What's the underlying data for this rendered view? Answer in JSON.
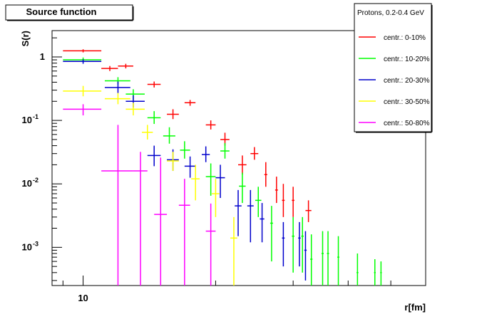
{
  "chart_data": {
    "type": "scatter",
    "title": "Source function",
    "xlabel": "r[fm]",
    "ylabel": "S(r)",
    "x_scale": "log",
    "y_scale": "log",
    "xlim": [
      8.5,
      60
    ],
    "ylim": [
      0.00025,
      2.6
    ],
    "x_ticks": [
      {
        "value": 10,
        "label": "10"
      }
    ],
    "y_ticks": [
      {
        "value": 1,
        "label": "1"
      },
      {
        "value": 0.1,
        "label": "10",
        "exp": "-1"
      },
      {
        "value": 0.01,
        "label": "10",
        "exp": "-2"
      },
      {
        "value": 0.001,
        "label": "10",
        "exp": "-3"
      }
    ],
    "grid": false,
    "legend_title": "Protons, 0.2-0.4 GeV",
    "legend_position": "top-right",
    "series": [
      {
        "name": "centr.: 0-10%",
        "color": "#ff0000",
        "points": [
          [
            10.0,
            1.25,
            9.0,
            11.0,
            1.18,
            1.32
          ],
          [
            11.5,
            0.66,
            11.0,
            12.0,
            0.6,
            0.72
          ],
          [
            12.5,
            0.72,
            12.0,
            13.0,
            0.66,
            0.78
          ],
          [
            14.5,
            0.37,
            14.0,
            15.0,
            0.33,
            0.41
          ],
          [
            16.0,
            0.125,
            15.5,
            16.5,
            0.105,
            0.15
          ],
          [
            17.5,
            0.19,
            17.0,
            18.0,
            0.17,
            0.21
          ],
          [
            19.5,
            0.085,
            19.0,
            20.0,
            0.072,
            0.1
          ],
          [
            21.0,
            0.05,
            20.5,
            21.5,
            0.04,
            0.064
          ],
          [
            23.0,
            0.02,
            22.5,
            23.5,
            0.014,
            0.028
          ],
          [
            24.5,
            0.03,
            24.0,
            25.0,
            0.024,
            0.038
          ],
          [
            26.0,
            0.014,
            25.8,
            26.2,
            0.009,
            0.022
          ],
          [
            27.5,
            0.008,
            27.3,
            27.7,
            0.005,
            0.013
          ],
          [
            28.5,
            0.0055,
            28.3,
            28.7,
            0.003,
            0.01
          ],
          [
            30.0,
            0.0055,
            29.8,
            30.2,
            0.003,
            0.009
          ],
          [
            32.5,
            0.0038,
            32.0,
            33.0,
            0.0025,
            0.0055
          ]
        ]
      },
      {
        "name": "centr.: 10-20%",
        "color": "#00ff00",
        "points": [
          [
            10.0,
            0.9,
            9.0,
            11.0,
            0.82,
            0.98
          ],
          [
            12.0,
            0.42,
            11.2,
            12.8,
            0.37,
            0.48
          ],
          [
            13.0,
            0.26,
            12.5,
            13.8,
            0.21,
            0.31
          ],
          [
            14.5,
            0.11,
            14.0,
            15.0,
            0.088,
            0.14
          ],
          [
            15.7,
            0.057,
            15.2,
            16.2,
            0.043,
            0.078
          ],
          [
            17.0,
            0.034,
            16.6,
            17.5,
            0.025,
            0.047
          ],
          [
            19.5,
            0.013,
            19.0,
            20.0,
            0.0065,
            0.021
          ],
          [
            21.0,
            0.033,
            20.5,
            21.5,
            0.025,
            0.044
          ],
          [
            23.0,
            0.0092,
            22.6,
            23.4,
            0.005,
            0.015
          ],
          [
            25.0,
            0.0055,
            24.6,
            25.4,
            0.003,
            0.009
          ],
          [
            26.8,
            0.0024,
            26.6,
            27.0,
            0.0006,
            0.0045
          ],
          [
            30.0,
            0.0015,
            29.8,
            30.2,
            0.0004,
            0.003
          ],
          [
            31.5,
            0.0015,
            31.3,
            31.7,
            0.0004,
            0.003
          ],
          [
            33.0,
            0.00065,
            32.8,
            33.2,
            0.00025,
            0.0016
          ],
          [
            35.0,
            0.0008,
            34.8,
            35.2,
            0.00025,
            0.0018
          ],
          [
            36.0,
            0.0008,
            35.8,
            36.2,
            0.00025,
            0.0018
          ],
          [
            38.0,
            0.0007,
            37.8,
            38.2,
            0.00025,
            0.0015
          ],
          [
            42.0,
            0.0004,
            41.8,
            42.2,
            0.00025,
            0.0008
          ],
          [
            46.0,
            0.0004,
            45.8,
            46.2,
            0.00025,
            0.00065
          ],
          [
            47.5,
            0.0004,
            47.3,
            47.7,
            0.00025,
            0.0006
          ]
        ]
      },
      {
        "name": "centr.: 20-30%",
        "color": "#0000cc",
        "points": [
          [
            10.0,
            0.85,
            9.0,
            11.0,
            0.78,
            0.92
          ],
          [
            12.0,
            0.33,
            11.2,
            12.8,
            0.27,
            0.41
          ],
          [
            13.0,
            0.2,
            12.5,
            13.8,
            0.16,
            0.25
          ],
          [
            14.5,
            0.028,
            14.0,
            15.0,
            0.019,
            0.04
          ],
          [
            16.0,
            0.024,
            15.5,
            16.5,
            0.016,
            0.035
          ],
          [
            17.5,
            0.019,
            17.0,
            18.0,
            0.0125,
            0.027
          ],
          [
            19.0,
            0.029,
            18.6,
            19.4,
            0.022,
            0.039
          ],
          [
            20.5,
            0.0125,
            20.0,
            21.0,
            0.006,
            0.02
          ],
          [
            22.5,
            0.0045,
            22.1,
            22.9,
            0.0015,
            0.008
          ],
          [
            24.0,
            0.0045,
            23.6,
            24.4,
            0.0012,
            0.008
          ],
          [
            25.5,
            0.0028,
            25.2,
            25.8,
            0.0012,
            0.005
          ],
          [
            28.5,
            0.0014,
            28.3,
            28.7,
            0.0005,
            0.0025
          ],
          [
            31.0,
            0.0014,
            30.8,
            31.2,
            0.0005,
            0.0025
          ],
          [
            32.0,
            0.0009,
            31.8,
            32.2,
            0.0003,
            0.0018
          ]
        ]
      },
      {
        "name": "centr.: 30-50%",
        "color": "#ffff00",
        "points": [
          [
            10.0,
            0.29,
            9.0,
            11.0,
            0.24,
            0.35
          ],
          [
            12.0,
            0.22,
            11.2,
            12.8,
            0.18,
            0.27
          ],
          [
            13.0,
            0.15,
            12.5,
            13.8,
            0.12,
            0.19
          ],
          [
            14.0,
            0.065,
            13.6,
            14.4,
            0.05,
            0.085
          ],
          [
            16.0,
            0.023,
            15.5,
            16.5,
            0.016,
            0.032
          ],
          [
            18.0,
            0.012,
            17.6,
            18.4,
            0.0055,
            0.02
          ],
          [
            20.0,
            0.007,
            19.6,
            20.4,
            0.003,
            0.012
          ],
          [
            22.0,
            0.0014,
            21.6,
            22.4,
            0.00025,
            0.003
          ]
        ]
      },
      {
        "name": "centr.: 50-80%",
        "color": "#ff00ff",
        "points": [
          [
            10.0,
            0.15,
            9.0,
            11.0,
            0.12,
            0.18
          ],
          [
            12.0,
            0.016,
            11.0,
            13.0,
            0.00025,
            0.085
          ],
          [
            13.5,
            0.016,
            13.0,
            14.0,
            0.00025,
            0.032
          ],
          [
            15.0,
            0.0033,
            14.5,
            15.5,
            0.00025,
            0.026
          ],
          [
            17.0,
            0.0046,
            16.5,
            17.5,
            0.00025,
            0.012
          ],
          [
            19.5,
            0.0018,
            19.0,
            20.0,
            0.00025,
            0.0049
          ]
        ]
      }
    ]
  }
}
